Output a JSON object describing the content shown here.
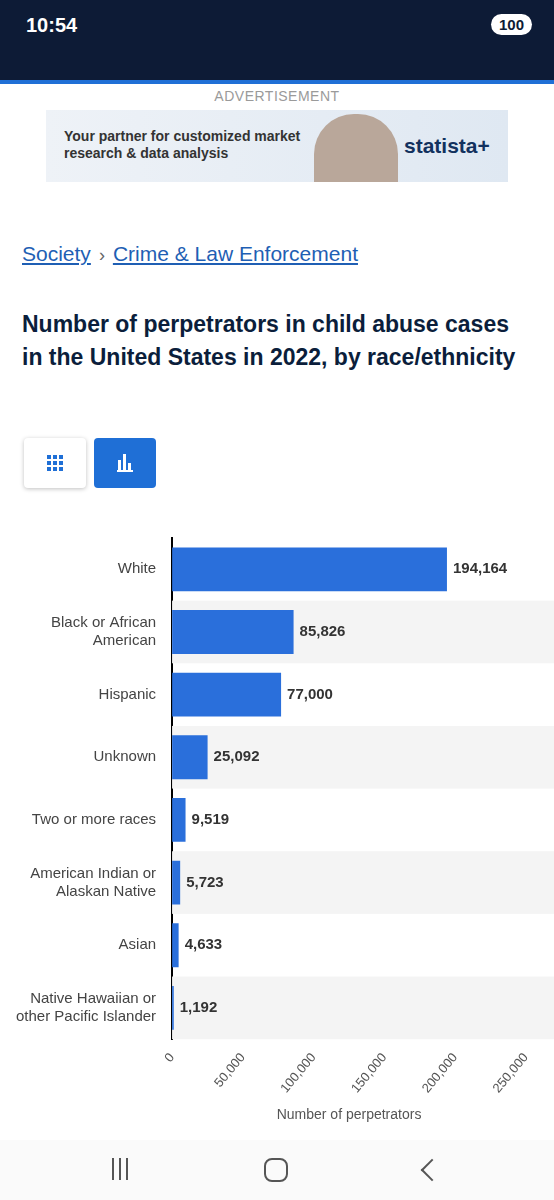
{
  "page": {
    "status_time": "10:54",
    "battery": "100",
    "ad_label": "ADVERTISEMENT",
    "ad_text": "Your partner for customized market research & data analysis",
    "ad_brand": "statista+",
    "breadcrumb": [
      "Society",
      "Crime & Law Enforcement"
    ],
    "breadcrumb_separator": "›"
  },
  "chart_data": {
    "type": "bar",
    "title": "Number of perpetrators in child abuse cases in the United States in 2022, by race/ethnicity",
    "orientation": "horizontal",
    "categories": [
      "White",
      "Black or African American",
      "Hispanic",
      "Unknown",
      "Two or more races",
      "American Indian or Alaskan Native",
      "Asian",
      "Native Hawaiian or other Pacific Islander"
    ],
    "values": [
      194164,
      85826,
      77000,
      25092,
      9519,
      5723,
      4633,
      1192
    ],
    "value_labels": [
      "194,164",
      "85,826",
      "77,000",
      "25,092",
      "9,519",
      "5,723",
      "4,633",
      "1,192"
    ],
    "data_labels": true,
    "color": "#2a6fdb",
    "xlabel": "Number of perpetrators",
    "xlim": [
      0,
      250000
    ],
    "xticks": [
      0,
      {
        "value": 50000,
        "label": "50,000"
      },
      {
        "value": 100000,
        "label": "100,000"
      },
      {
        "value": 150000,
        "label": "150,000"
      },
      {
        "value": 200000,
        "label": "200,000"
      },
      {
        "value": 250000,
        "label": "250,000"
      }
    ],
    "grid": false,
    "legend": false
  }
}
